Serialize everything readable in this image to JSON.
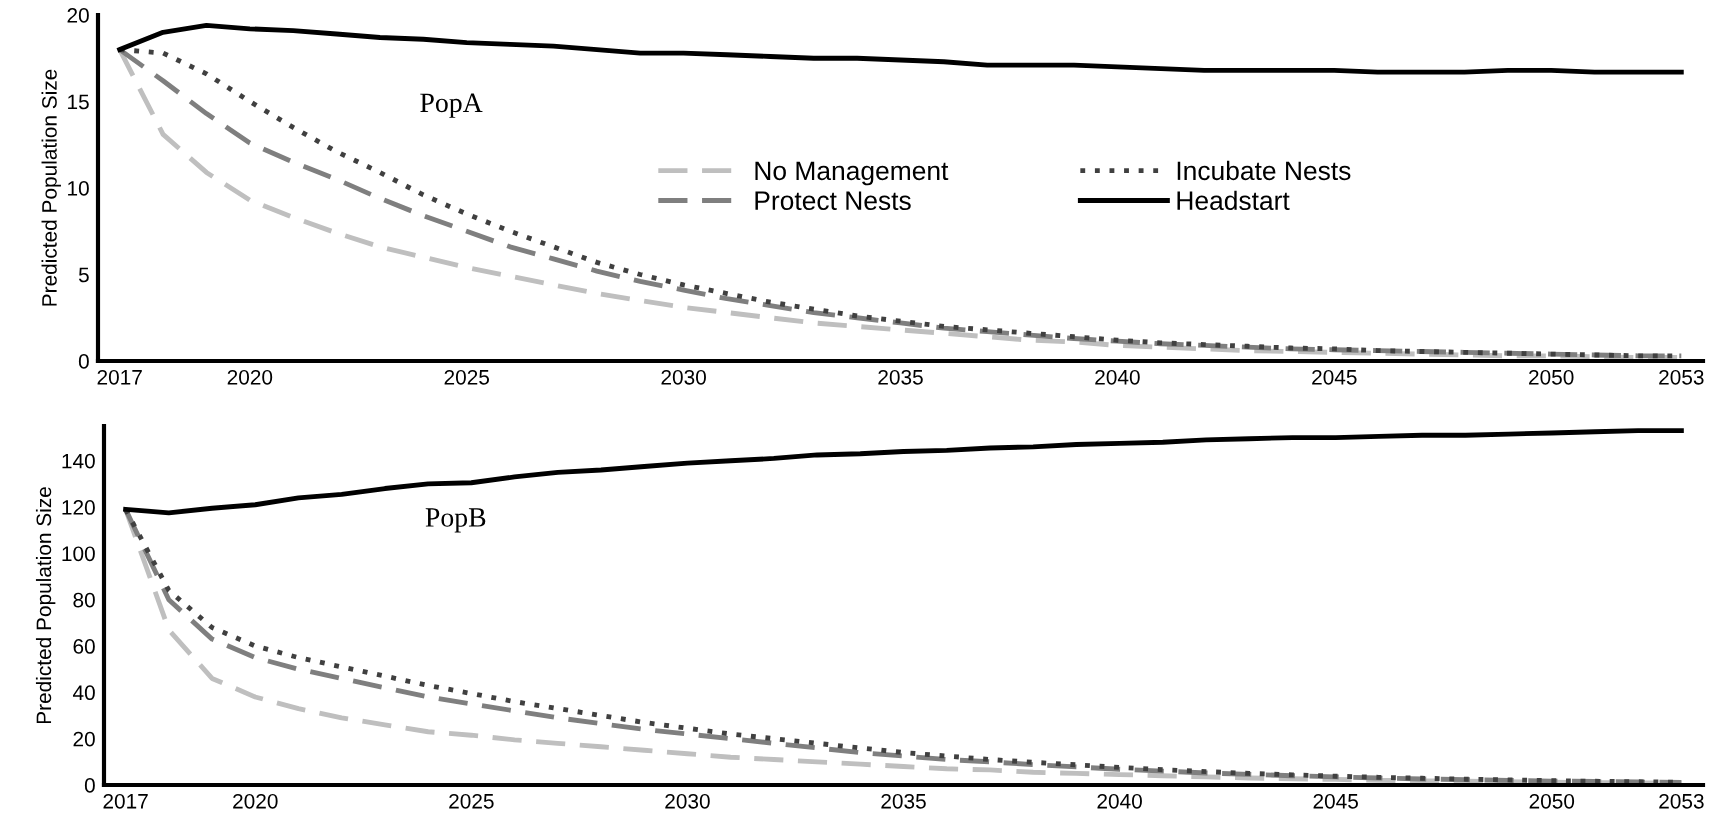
{
  "chart_data": [
    {
      "type": "line",
      "ylabel": "Predicted Population Size",
      "annotations": [
        "PopA"
      ],
      "x": [
        2017,
        2018,
        2019,
        2020,
        2021,
        2022,
        2023,
        2024,
        2025,
        2026,
        2027,
        2028,
        2029,
        2030,
        2031,
        2032,
        2033,
        2034,
        2035,
        2036,
        2037,
        2038,
        2039,
        2040,
        2041,
        2042,
        2043,
        2044,
        2045,
        2046,
        2047,
        2048,
        2049,
        2050,
        2051,
        2052,
        2053
      ],
      "xlim": [
        2016.5,
        2053.5
      ],
      "xticks": [
        2017,
        2020,
        2025,
        2030,
        2035,
        2040,
        2045,
        2050,
        2053
      ],
      "ylim": [
        0,
        20
      ],
      "yticks": [
        0,
        5,
        10,
        15,
        20
      ],
      "grid": false,
      "legend": "center",
      "marker": "none",
      "series": [
        {
          "name": "No Management",
          "color": "#bfbfbf",
          "line_style": "dashed",
          "values": [
            18,
            13.1,
            10.9,
            9.3,
            8.3,
            7.4,
            6.6,
            6.0,
            5.4,
            4.9,
            4.4,
            3.9,
            3.5,
            3.1,
            2.8,
            2.5,
            2.2,
            2.0,
            1.8,
            1.6,
            1.4,
            1.2,
            1.1,
            0.9,
            0.8,
            0.7,
            0.6,
            0.55,
            0.5,
            0.45,
            0.4,
            0.35,
            0.3,
            0.3,
            0.25,
            0.2,
            0.2
          ]
        },
        {
          "name": "Protect Nests",
          "color": "#7f7f7f",
          "line_style": "dashed",
          "values": [
            18,
            16.2,
            14.3,
            12.6,
            11.5,
            10.5,
            9.4,
            8.4,
            7.5,
            6.6,
            5.9,
            5.2,
            4.6,
            4.1,
            3.6,
            3.2,
            2.8,
            2.5,
            2.2,
            1.9,
            1.7,
            1.5,
            1.3,
            1.15,
            1.0,
            0.9,
            0.8,
            0.7,
            0.65,
            0.6,
            0.55,
            0.5,
            0.45,
            0.4,
            0.35,
            0.3,
            0.3
          ]
        },
        {
          "name": "Incubate Nests",
          "color": "#404040",
          "line_style": "dotted",
          "values": [
            18,
            17.8,
            16.6,
            15.0,
            13.5,
            12.1,
            10.9,
            9.6,
            8.5,
            7.5,
            6.6,
            5.7,
            5.0,
            4.4,
            3.9,
            3.4,
            3.0,
            2.6,
            2.3,
            2.0,
            1.8,
            1.6,
            1.4,
            1.2,
            1.05,
            0.95,
            0.85,
            0.75,
            0.7,
            0.6,
            0.55,
            0.5,
            0.45,
            0.4,
            0.35,
            0.3,
            0.3
          ]
        },
        {
          "name": "Headstart",
          "color": "#000000",
          "line_style": "solid",
          "values": [
            18,
            19.0,
            19.4,
            19.2,
            19.1,
            18.9,
            18.7,
            18.6,
            18.4,
            18.3,
            18.2,
            18.0,
            17.8,
            17.8,
            17.7,
            17.6,
            17.5,
            17.5,
            17.4,
            17.3,
            17.1,
            17.1,
            17.1,
            17.0,
            16.9,
            16.8,
            16.8,
            16.8,
            16.8,
            16.7,
            16.7,
            16.7,
            16.8,
            16.8,
            16.7,
            16.7,
            16.7
          ]
        }
      ]
    },
    {
      "type": "line",
      "ylabel": "Predicted Population Size",
      "annotations": [
        "PopB"
      ],
      "x": [
        2017,
        2018,
        2019,
        2020,
        2021,
        2022,
        2023,
        2024,
        2025,
        2026,
        2027,
        2028,
        2029,
        2030,
        2031,
        2032,
        2033,
        2034,
        2035,
        2036,
        2037,
        2038,
        2039,
        2040,
        2041,
        2042,
        2043,
        2044,
        2045,
        2046,
        2047,
        2048,
        2049,
        2050,
        2051,
        2052,
        2053
      ],
      "xlim": [
        2016.5,
        2053.5
      ],
      "xticks": [
        2017,
        2020,
        2025,
        2030,
        2035,
        2040,
        2045,
        2050,
        2053
      ],
      "ylim": [
        0,
        155
      ],
      "yticks": [
        0,
        20,
        40,
        60,
        80,
        100,
        120,
        140
      ],
      "grid": false,
      "marker": "none",
      "series": [
        {
          "color": "#bfbfbf",
          "line_style": "dashed",
          "values": [
            119,
            67,
            46,
            38,
            33,
            29,
            26,
            23,
            21.5,
            19.5,
            18,
            16.5,
            15,
            13.5,
            12,
            11,
            10,
            9,
            8,
            7,
            6.5,
            5.5,
            5,
            4.5,
            4,
            3.5,
            3,
            2.7,
            2.4,
            2,
            1.8,
            1.6,
            1.4,
            1.2,
            1,
            0.9,
            0.8
          ]
        },
        {
          "color": "#7f7f7f",
          "line_style": "dashed",
          "values": [
            119,
            80,
            63,
            55,
            50,
            46,
            42,
            38,
            35,
            32,
            29,
            26.5,
            24,
            22,
            20,
            18,
            16,
            14,
            12.5,
            11,
            10,
            8.8,
            7.8,
            6.8,
            6,
            5.2,
            4.6,
            4,
            3.5,
            3,
            2.6,
            2.3,
            2,
            1.7,
            1.5,
            1.3,
            1.1
          ]
        },
        {
          "color": "#404040",
          "line_style": "dotted",
          "values": [
            119,
            84,
            68,
            60,
            55,
            51,
            47,
            43,
            39.5,
            36,
            33,
            30,
            27,
            24.5,
            22,
            20,
            18,
            16,
            14,
            12.5,
            11,
            9.8,
            8.7,
            7.6,
            6.6,
            5.8,
            5,
            4.4,
            3.8,
            3.3,
            2.9,
            2.5,
            2.2,
            1.9,
            1.6,
            1.4,
            1.2
          ]
        },
        {
          "color": "#000000",
          "line_style": "solid",
          "values": [
            119,
            117.5,
            119.5,
            121,
            124,
            125.5,
            128,
            130,
            130.5,
            133,
            135,
            136,
            137.5,
            139,
            140,
            141,
            142.5,
            143,
            144,
            144.5,
            145.5,
            146,
            147,
            147.5,
            148,
            149,
            149.5,
            150,
            150,
            150.5,
            151,
            151,
            151.5,
            152,
            152.5,
            153,
            153
          ]
        }
      ]
    }
  ]
}
